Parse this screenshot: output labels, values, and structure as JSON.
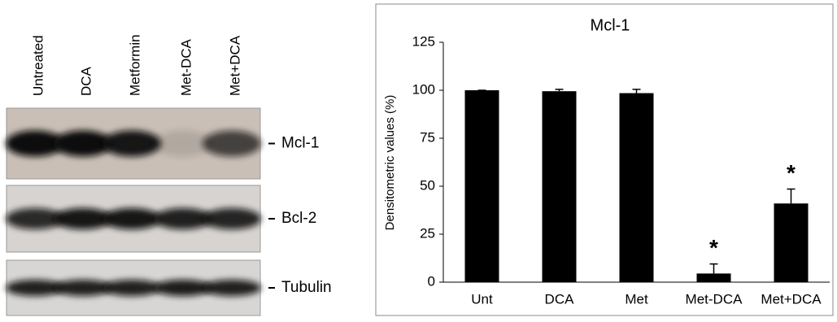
{
  "blot": {
    "lanes": [
      "Untreated",
      "DCA",
      "Metformin",
      "Met-DCA",
      "Met+DCA"
    ],
    "bands": [
      "Mcl-1",
      "Bcl-2",
      "Tubulin"
    ]
  },
  "chart_data": {
    "type": "bar",
    "title": "Mcl-1",
    "y_label": "Densitometric values  (%)",
    "categories": [
      "Unt",
      "DCA",
      "Met",
      "Met-DCA",
      "Met+DCA"
    ],
    "values": [
      100,
      99.5,
      98.5,
      4.5,
      41
    ],
    "errors": [
      0,
      1,
      2,
      5,
      7.5
    ],
    "color": "#000000",
    "ylim": [
      0,
      125
    ],
    "yticks": [
      0,
      25,
      50,
      75,
      100,
      125
    ],
    "annotations": [
      {
        "text": "*",
        "category": "Met-DCA"
      },
      {
        "text": "*",
        "category": "Met+DCA"
      }
    ]
  }
}
